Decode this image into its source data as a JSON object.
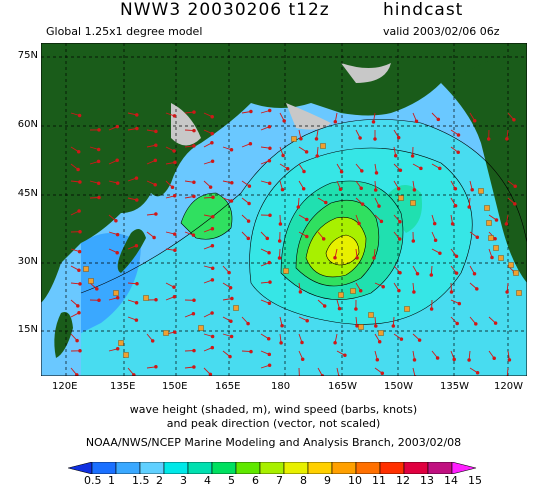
{
  "header": {
    "model_run": "NWW3 20030206 t12z",
    "run_type": "hindcast",
    "model_desc": "Global 1.25x1 degree model",
    "valid_time": "valid 2003/02/06 06z"
  },
  "map": {
    "lat_labels": [
      "75N",
      "60N",
      "45N",
      "30N",
      "15N"
    ],
    "lon_labels": [
      "120E",
      "135E",
      "150E",
      "165E",
      "180",
      "165W",
      "150W",
      "135W",
      "120W"
    ],
    "colors": {
      "land": "#1a5c1a",
      "ice": "#c8c8c8",
      "ocean_low": "#6ac8ff",
      "ocean_mid": "#36e6e6",
      "arrows": "#d01818",
      "buoys": "#f0a030"
    },
    "legend_position": "bottom"
  },
  "captions": {
    "line1": "wave height (shaded, m), wind speed (barbs, knots)",
    "line2": "and peak direction (vector, not scaled)",
    "credit": "NOAA/NWS/NCEP Marine Modeling and Analysis Branch, 2003/02/08"
  },
  "colorbar": {
    "labels": [
      "0.5",
      "1",
      "1.5",
      "2",
      "3",
      "4",
      "5",
      "6",
      "7",
      "8",
      "9",
      "10",
      "11",
      "12",
      "13",
      "14",
      "15"
    ],
    "colors": [
      "#1030e0",
      "#1a70ff",
      "#3aa8ff",
      "#60d0ff",
      "#00e8e8",
      "#00e0b0",
      "#00e060",
      "#60e800",
      "#a8f000",
      "#e8f000",
      "#ffd000",
      "#ffa000",
      "#ff7000",
      "#ff3000",
      "#e00040",
      "#c01080",
      "#ff20ff"
    ]
  }
}
